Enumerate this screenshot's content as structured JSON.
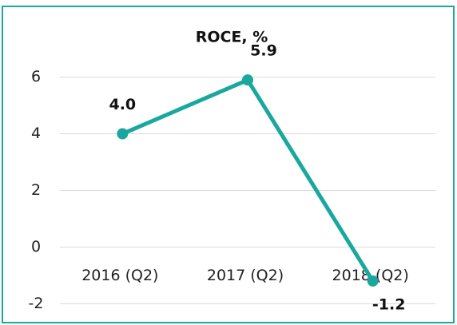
{
  "chart_data": {
    "type": "line",
    "title": "ROCE, %",
    "categories": [
      "2016 (Q2)",
      "2017 (Q2)",
      "2018 (Q2)"
    ],
    "series": [
      {
        "name": "ROCE",
        "color": "#1aa89e",
        "values": [
          4.0,
          5.9,
          -1.2
        ],
        "value_labels": [
          "4.0",
          "5.9",
          "-1.2"
        ]
      }
    ],
    "ylim": [
      -2.5,
      8.5
    ],
    "yticks": [
      -2,
      0,
      2,
      4,
      6
    ],
    "grid": true
  }
}
